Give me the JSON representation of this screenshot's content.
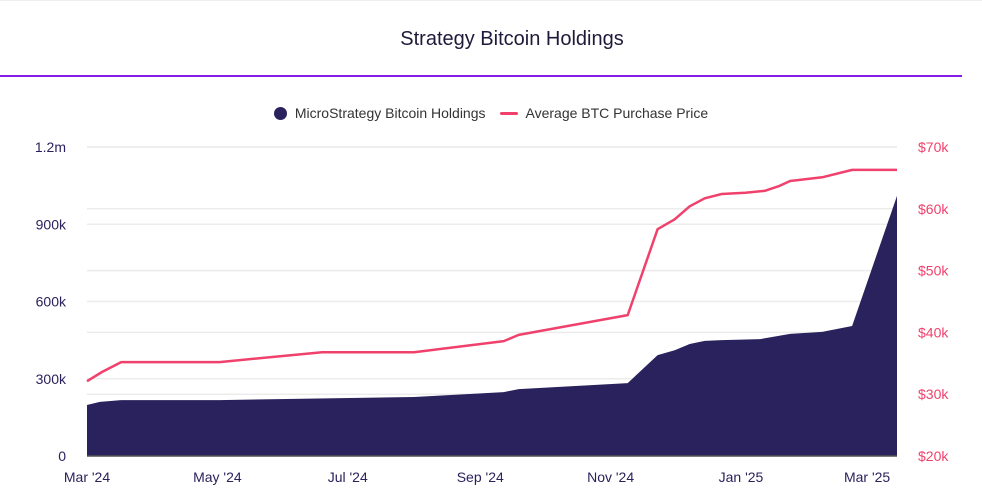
{
  "title": "Strategy Bitcoin Holdings",
  "chart_data": {
    "type": "area+line",
    "title": "Strategy Bitcoin Holdings",
    "legend_position": "top",
    "grid": true,
    "x_ticks": [
      {
        "date": "2024-03-01",
        "label": "Mar '24"
      },
      {
        "date": "2024-05-01",
        "label": "May '24"
      },
      {
        "date": "2024-07-01",
        "label": "Jul '24"
      },
      {
        "date": "2024-09-01",
        "label": "Sep '24"
      },
      {
        "date": "2024-11-01",
        "label": "Nov '24"
      },
      {
        "date": "2025-01-01",
        "label": "Jan '25"
      },
      {
        "date": "2025-03-01",
        "label": "Mar '25"
      }
    ],
    "xlim": [
      "2024-03-01",
      "2025-03-15"
    ],
    "y_left": {
      "ylim": [
        0,
        1200000
      ],
      "ticks": [
        {
          "v": 0,
          "label": "0"
        },
        {
          "v": 300000,
          "label": "300k"
        },
        {
          "v": 600000,
          "label": "600k"
        },
        {
          "v": 900000,
          "label": "900k"
        },
        {
          "v": 1200000,
          "label": "1.2m"
        }
      ]
    },
    "y_right": {
      "ylim": [
        20000,
        70000
      ],
      "ticks": [
        {
          "v": 20000,
          "label": "$20k"
        },
        {
          "v": 30000,
          "label": "$30k"
        },
        {
          "v": 40000,
          "label": "$40k"
        },
        {
          "v": 50000,
          "label": "$50k"
        },
        {
          "v": 60000,
          "label": "$60k"
        },
        {
          "v": 70000,
          "label": "$70k"
        }
      ]
    },
    "series": [
      {
        "name": "MicroStrategy Bitcoin Holdings",
        "type": "area",
        "axis": "left",
        "color": "#2a225c",
        "points": [
          [
            "2024-03-01",
            198000
          ],
          [
            "2024-03-07",
            210000
          ],
          [
            "2024-03-17",
            217000
          ],
          [
            "2024-05-02",
            217000
          ],
          [
            "2024-08-01",
            229000
          ],
          [
            "2024-09-12",
            248000
          ],
          [
            "2024-09-19",
            260000
          ],
          [
            "2024-11-09",
            283000
          ],
          [
            "2024-11-23",
            392000
          ],
          [
            "2024-12-01",
            411000
          ],
          [
            "2024-12-08",
            435000
          ],
          [
            "2024-12-15",
            447000
          ],
          [
            "2024-12-23",
            450000
          ],
          [
            "2025-01-10",
            454000
          ],
          [
            "2025-01-24",
            474000
          ],
          [
            "2025-02-08",
            482000
          ],
          [
            "2025-02-22",
            505000
          ],
          [
            "2025-03-15",
            1010000
          ]
        ]
      },
      {
        "name": "Average BTC Purchase Price",
        "type": "line",
        "axis": "right",
        "color": "#f0416c",
        "points": [
          [
            "2024-03-01",
            32100
          ],
          [
            "2024-03-08",
            33600
          ],
          [
            "2024-03-17",
            35200
          ],
          [
            "2024-05-02",
            35200
          ],
          [
            "2024-06-19",
            36800
          ],
          [
            "2024-08-01",
            36800
          ],
          [
            "2024-09-12",
            38600
          ],
          [
            "2024-09-19",
            39600
          ],
          [
            "2024-11-09",
            42800
          ],
          [
            "2024-11-23",
            56700
          ],
          [
            "2024-12-01",
            58300
          ],
          [
            "2024-12-08",
            60400
          ],
          [
            "2024-12-15",
            61700
          ],
          [
            "2024-12-23",
            62400
          ],
          [
            "2025-01-03",
            62600
          ],
          [
            "2025-01-12",
            62900
          ],
          [
            "2025-01-19",
            63700
          ],
          [
            "2025-01-24",
            64500
          ],
          [
            "2025-02-08",
            65100
          ],
          [
            "2025-02-22",
            66300
          ],
          [
            "2025-03-15",
            66300
          ]
        ]
      }
    ]
  }
}
